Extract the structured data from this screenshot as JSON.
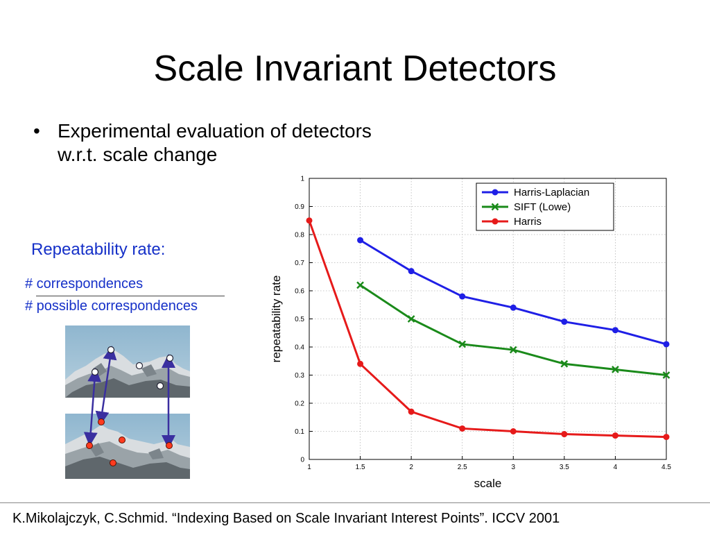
{
  "slide": {
    "title": "Scale Invariant Detectors",
    "bullet_line1": "Experimental evaluation of detectors",
    "bullet_line2": "w.r.t. scale change",
    "bullet_marker": "•",
    "repeatability_label": "Repeatability rate:",
    "fraction_numerator": "# correspondences",
    "fraction_denominator": "# possible correspondences",
    "footer": "K.Mikolajczyk, C.Schmid. “Indexing Based on Scale Invariant Interest Points”. ICCV 2001"
  },
  "chart_data": {
    "type": "line",
    "xlabel": "scale",
    "ylabel": "repeatability rate",
    "xlim": [
      1,
      4.5
    ],
    "ylim": [
      0,
      1
    ],
    "xticks": [
      1,
      1.5,
      2,
      2.5,
      3,
      3.5,
      4,
      4.5
    ],
    "xtick_labels": [
      "1",
      "1.5",
      "2",
      "2.5",
      "3",
      "3.5",
      "4",
      "4.5"
    ],
    "yticks": [
      0,
      0.1,
      0.2,
      0.3,
      0.4,
      0.5,
      0.6,
      0.7,
      0.8,
      0.9,
      1
    ],
    "ytick_labels": [
      "0",
      "0.1",
      "0.2",
      "0.3",
      "0.4",
      "0.5",
      "0.6",
      "0.7",
      "0.8",
      "0.9",
      "1"
    ],
    "grid": true,
    "legend_position": "top-right",
    "series": [
      {
        "name": "Harris-Laplacian",
        "color": "#1f1fe6",
        "marker": "dot",
        "x": [
          1.5,
          2,
          2.5,
          3,
          3.5,
          4,
          4.5
        ],
        "y": [
          0.78,
          0.67,
          0.58,
          0.54,
          0.49,
          0.46,
          0.41
        ]
      },
      {
        "name": "SIFT (Lowe)",
        "color": "#1a8a1a",
        "marker": "x",
        "x": [
          1.5,
          2,
          2.5,
          3,
          3.5,
          4,
          4.5
        ],
        "y": [
          0.62,
          0.5,
          0.41,
          0.39,
          0.34,
          0.32,
          0.3
        ]
      },
      {
        "name": "Harris",
        "color": "#e61a1a",
        "marker": "dot",
        "x": [
          1,
          1.5,
          2,
          2.5,
          3,
          3.5,
          4,
          4.5
        ],
        "y": [
          0.85,
          0.34,
          0.17,
          0.11,
          0.1,
          0.09,
          0.085,
          0.08
        ]
      }
    ]
  },
  "images": {
    "top_photo": "mountain-ridge-photo",
    "bottom_photo": "mountain-ridge-photo-scaled",
    "arrow_color": "#3a2fa0",
    "top_point_color": "#ffffff",
    "bottom_point_color": "#ff3b1f"
  }
}
